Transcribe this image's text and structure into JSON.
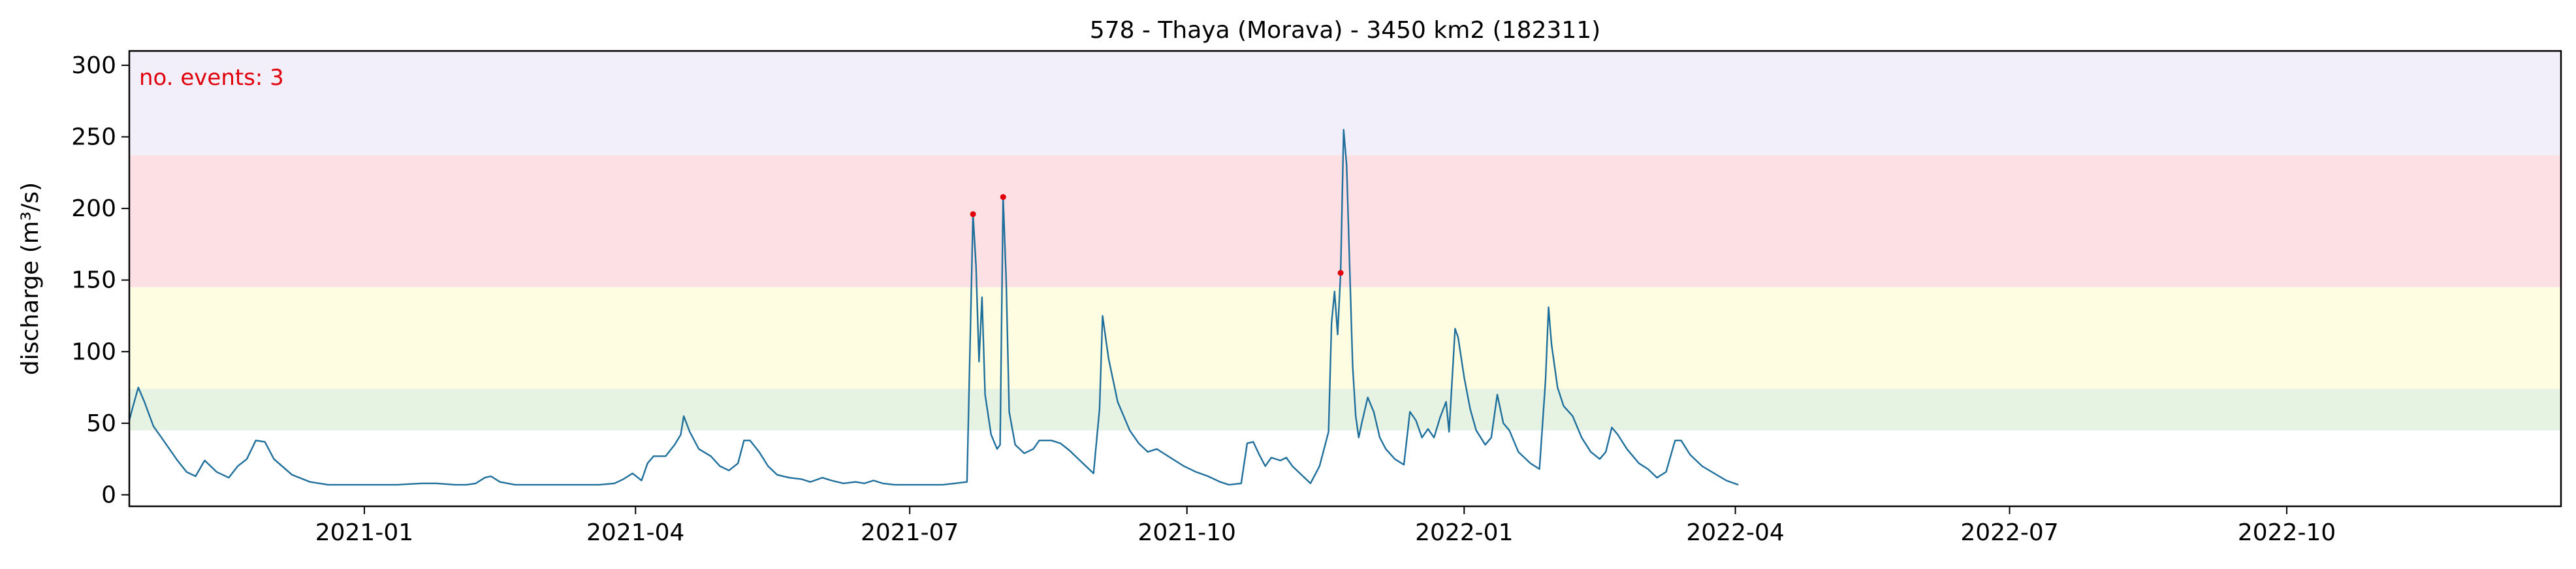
{
  "chart_data": {
    "type": "line",
    "title": "578 - Thaya (Morava) - 3450 km2 (182311)",
    "ylabel": "discharge (m³/s)",
    "xlim": [
      "2020-10-15",
      "2022-12-31"
    ],
    "ylim": [
      -8,
      310
    ],
    "x_ticks": [
      {
        "date": "2021-01-01",
        "label": "2021-01"
      },
      {
        "date": "2021-04-01",
        "label": "2021-04"
      },
      {
        "date": "2021-07-01",
        "label": "2021-07"
      },
      {
        "date": "2021-10-01",
        "label": "2021-10"
      },
      {
        "date": "2022-01-01",
        "label": "2022-01"
      },
      {
        "date": "2022-04-01",
        "label": "2022-04"
      },
      {
        "date": "2022-07-01",
        "label": "2022-07"
      },
      {
        "date": "2022-10-01",
        "label": "2022-10"
      }
    ],
    "y_ticks": [
      0,
      50,
      100,
      150,
      200,
      250,
      300
    ],
    "bands": [
      {
        "from": 45,
        "to": 74,
        "color": "#e6f2e2"
      },
      {
        "from": 74,
        "to": 145,
        "color": "#fefde2"
      },
      {
        "from": 145,
        "to": 237,
        "color": "#fde0e4"
      },
      {
        "from": 237,
        "to": 310,
        "color": "#f3effa"
      }
    ],
    "annotation": {
      "text": "no. events: 3",
      "color": "#e0000b"
    },
    "series": [
      {
        "color": "#1f6f9c",
        "points": [
          [
            "2020-10-15",
            52
          ],
          [
            "2020-10-16",
            60
          ],
          [
            "2020-10-18",
            75
          ],
          [
            "2020-10-20",
            65
          ],
          [
            "2020-10-23",
            48
          ],
          [
            "2020-10-27",
            36
          ],
          [
            "2020-10-31",
            24
          ],
          [
            "2020-11-03",
            16
          ],
          [
            "2020-11-06",
            13
          ],
          [
            "2020-11-09",
            24
          ],
          [
            "2020-11-13",
            16
          ],
          [
            "2020-11-17",
            12
          ],
          [
            "2020-11-20",
            20
          ],
          [
            "2020-11-23",
            25
          ],
          [
            "2020-11-26",
            38
          ],
          [
            "2020-11-29",
            37
          ],
          [
            "2020-12-02",
            25
          ],
          [
            "2020-12-08",
            14
          ],
          [
            "2020-12-14",
            9
          ],
          [
            "2020-12-20",
            7
          ],
          [
            "2020-12-28",
            7
          ],
          [
            "2021-01-05",
            7
          ],
          [
            "2021-01-12",
            7
          ],
          [
            "2021-01-20",
            8
          ],
          [
            "2021-01-25",
            8
          ],
          [
            "2021-01-31",
            7
          ],
          [
            "2021-02-04",
            7
          ],
          [
            "2021-02-07",
            8
          ],
          [
            "2021-02-10",
            12
          ],
          [
            "2021-02-12",
            13
          ],
          [
            "2021-02-15",
            9
          ],
          [
            "2021-02-20",
            7
          ],
          [
            "2021-03-01",
            7
          ],
          [
            "2021-03-10",
            7
          ],
          [
            "2021-03-20",
            7
          ],
          [
            "2021-03-25",
            8
          ],
          [
            "2021-03-28",
            11
          ],
          [
            "2021-03-31",
            15
          ],
          [
            "2021-04-03",
            10
          ],
          [
            "2021-04-05",
            22
          ],
          [
            "2021-04-07",
            27
          ],
          [
            "2021-04-11",
            27
          ],
          [
            "2021-04-14",
            35
          ],
          [
            "2021-04-16",
            42
          ],
          [
            "2021-04-17",
            55
          ],
          [
            "2021-04-19",
            44
          ],
          [
            "2021-04-22",
            32
          ],
          [
            "2021-04-26",
            27
          ],
          [
            "2021-04-29",
            20
          ],
          [
            "2021-05-02",
            17
          ],
          [
            "2021-05-05",
            22
          ],
          [
            "2021-05-07",
            38
          ],
          [
            "2021-05-09",
            38
          ],
          [
            "2021-05-12",
            30
          ],
          [
            "2021-05-15",
            20
          ],
          [
            "2021-05-18",
            14
          ],
          [
            "2021-05-22",
            12
          ],
          [
            "2021-05-26",
            11
          ],
          [
            "2021-05-29",
            9
          ],
          [
            "2021-06-02",
            12
          ],
          [
            "2021-06-05",
            10
          ],
          [
            "2021-06-09",
            8
          ],
          [
            "2021-06-13",
            9
          ],
          [
            "2021-06-16",
            8
          ],
          [
            "2021-06-19",
            10
          ],
          [
            "2021-06-22",
            8
          ],
          [
            "2021-06-26",
            7
          ],
          [
            "2021-06-30",
            7
          ],
          [
            "2021-07-04",
            7
          ],
          [
            "2021-07-08",
            7
          ],
          [
            "2021-07-12",
            7
          ],
          [
            "2021-07-16",
            8
          ],
          [
            "2021-07-20",
            9
          ],
          [
            "2021-07-22",
            196
          ],
          [
            "2021-07-23",
            160
          ],
          [
            "2021-07-24",
            93
          ],
          [
            "2021-07-25",
            138
          ],
          [
            "2021-07-26",
            70
          ],
          [
            "2021-07-28",
            42
          ],
          [
            "2021-07-30",
            32
          ],
          [
            "2021-07-31",
            35
          ],
          [
            "2021-08-01",
            208
          ],
          [
            "2021-08-02",
            150
          ],
          [
            "2021-08-03",
            58
          ],
          [
            "2021-08-05",
            35
          ],
          [
            "2021-08-08",
            29
          ],
          [
            "2021-08-11",
            32
          ],
          [
            "2021-08-13",
            38
          ],
          [
            "2021-08-17",
            38
          ],
          [
            "2021-08-20",
            36
          ],
          [
            "2021-08-23",
            31
          ],
          [
            "2021-08-27",
            23
          ],
          [
            "2021-08-31",
            15
          ],
          [
            "2021-09-02",
            60
          ],
          [
            "2021-09-03",
            125
          ],
          [
            "2021-09-05",
            95
          ],
          [
            "2021-09-08",
            65
          ],
          [
            "2021-09-12",
            45
          ],
          [
            "2021-09-15",
            36
          ],
          [
            "2021-09-18",
            30
          ],
          [
            "2021-09-21",
            32
          ],
          [
            "2021-09-24",
            28
          ],
          [
            "2021-09-27",
            24
          ],
          [
            "2021-09-30",
            20
          ],
          [
            "2021-10-04",
            16
          ],
          [
            "2021-10-08",
            13
          ],
          [
            "2021-10-12",
            9
          ],
          [
            "2021-10-15",
            7
          ],
          [
            "2021-10-19",
            8
          ],
          [
            "2021-10-21",
            36
          ],
          [
            "2021-10-23",
            37
          ],
          [
            "2021-10-25",
            28
          ],
          [
            "2021-10-27",
            20
          ],
          [
            "2021-10-29",
            26
          ],
          [
            "2021-11-01",
            24
          ],
          [
            "2021-11-03",
            26
          ],
          [
            "2021-11-05",
            20
          ],
          [
            "2021-11-08",
            14
          ],
          [
            "2021-11-11",
            8
          ],
          [
            "2021-11-14",
            20
          ],
          [
            "2021-11-17",
            44
          ],
          [
            "2021-11-18",
            120
          ],
          [
            "2021-11-19",
            142
          ],
          [
            "2021-11-20",
            112
          ],
          [
            "2021-11-21",
            155
          ],
          [
            "2021-11-22",
            255
          ],
          [
            "2021-11-23",
            230
          ],
          [
            "2021-11-24",
            160
          ],
          [
            "2021-11-25",
            90
          ],
          [
            "2021-11-26",
            55
          ],
          [
            "2021-11-27",
            40
          ],
          [
            "2021-11-28",
            50
          ],
          [
            "2021-11-30",
            68
          ],
          [
            "2021-12-02",
            58
          ],
          [
            "2021-12-04",
            40
          ],
          [
            "2021-12-06",
            32
          ],
          [
            "2021-12-09",
            25
          ],
          [
            "2021-12-12",
            21
          ],
          [
            "2021-12-14",
            58
          ],
          [
            "2021-12-16",
            52
          ],
          [
            "2021-12-18",
            40
          ],
          [
            "2021-12-20",
            46
          ],
          [
            "2021-12-22",
            40
          ],
          [
            "2021-12-24",
            54
          ],
          [
            "2021-12-26",
            65
          ],
          [
            "2021-12-27",
            44
          ],
          [
            "2021-12-29",
            116
          ],
          [
            "2021-12-30",
            110
          ],
          [
            "2022-01-01",
            82
          ],
          [
            "2022-01-03",
            60
          ],
          [
            "2022-01-05",
            45
          ],
          [
            "2022-01-08",
            35
          ],
          [
            "2022-01-10",
            40
          ],
          [
            "2022-01-12",
            70
          ],
          [
            "2022-01-14",
            50
          ],
          [
            "2022-01-16",
            45
          ],
          [
            "2022-01-19",
            30
          ],
          [
            "2022-01-23",
            22
          ],
          [
            "2022-01-26",
            18
          ],
          [
            "2022-01-28",
            80
          ],
          [
            "2022-01-29",
            131
          ],
          [
            "2022-01-30",
            105
          ],
          [
            "2022-02-01",
            75
          ],
          [
            "2022-02-03",
            62
          ],
          [
            "2022-02-06",
            55
          ],
          [
            "2022-02-09",
            40
          ],
          [
            "2022-02-12",
            30
          ],
          [
            "2022-02-15",
            25
          ],
          [
            "2022-02-17",
            30
          ],
          [
            "2022-02-19",
            47
          ],
          [
            "2022-02-21",
            42
          ],
          [
            "2022-02-24",
            32
          ],
          [
            "2022-02-28",
            22
          ],
          [
            "2022-03-03",
            18
          ],
          [
            "2022-03-06",
            12
          ],
          [
            "2022-03-09",
            16
          ],
          [
            "2022-03-12",
            38
          ],
          [
            "2022-03-14",
            38
          ],
          [
            "2022-03-17",
            28
          ],
          [
            "2022-03-21",
            20
          ],
          [
            "2022-03-25",
            15
          ],
          [
            "2022-03-29",
            10
          ],
          [
            "2022-04-02",
            7
          ]
        ]
      }
    ],
    "events": [
      {
        "date": "2021-07-22",
        "value": 196
      },
      {
        "date": "2021-08-01",
        "value": 208
      },
      {
        "date": "2021-11-21",
        "value": 155
      }
    ]
  }
}
